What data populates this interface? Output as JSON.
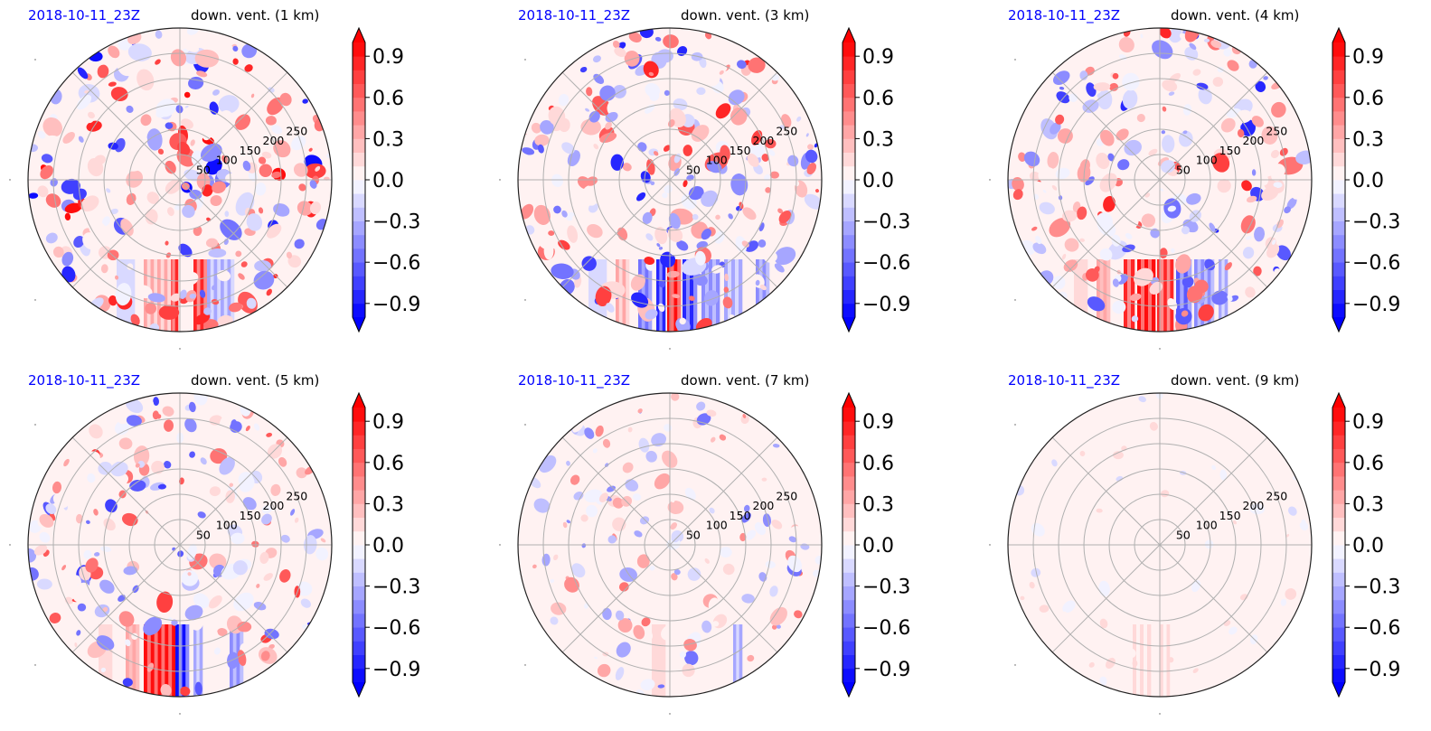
{
  "chart_data": {
    "type": "heatmap",
    "projection": "polar",
    "colormap": "bwr",
    "color_range": [
      -1.0,
      1.0
    ],
    "colorbar": {
      "ticks": [
        0.9,
        0.6,
        0.3,
        0.0,
        -0.3,
        -0.6,
        -0.9
      ],
      "tick_labels": [
        "0.9",
        "0.6",
        "0.3",
        "0.0",
        "−0.3",
        "−0.6",
        "−0.9"
      ],
      "extend": "both",
      "levels": 20
    },
    "radial_ticks": [
      50,
      100,
      150,
      200,
      250
    ],
    "radial_tick_labels": [
      "50",
      "100",
      "150",
      "200",
      "250"
    ],
    "r_max": 300,
    "angular_gridlines_deg": [
      0,
      45,
      90,
      135,
      180,
      225,
      270,
      315
    ],
    "grid": true,
    "date_color": "#0000ff",
    "panels": [
      {
        "date": "2018-10-11_23Z",
        "title": "down. vent. (1 km)",
        "activity": 1.0,
        "streaks": [
          [
            -12,
            -2,
            0.8
          ],
          [
            15,
            30,
            0.9
          ],
          [
            -40,
            -10,
            0.3
          ],
          [
            30,
            60,
            -0.3
          ],
          [
            -70,
            -50,
            -0.2
          ]
        ]
      },
      {
        "date": "2018-10-11_23Z",
        "title": "down. vent. (3 km)",
        "activity": 0.9,
        "streaks": [
          [
            -35,
            -20,
            -0.6
          ],
          [
            -15,
            -5,
            -0.8
          ],
          [
            -3,
            12,
            1.0
          ],
          [
            14,
            30,
            -0.8
          ],
          [
            35,
            55,
            -0.5
          ],
          [
            -60,
            -45,
            0.3
          ],
          [
            60,
            80,
            -0.3
          ],
          [
            -90,
            -70,
            -0.2
          ],
          [
            95,
            110,
            -0.4
          ]
        ]
      },
      {
        "date": "2018-10-11_23Z",
        "title": "down. vent. (4 km)",
        "activity": 0.85,
        "streaks": [
          [
            -40,
            -28,
            0.9
          ],
          [
            -25,
            -5,
            1.0
          ],
          [
            -3,
            15,
            0.9
          ],
          [
            18,
            35,
            -0.7
          ],
          [
            38,
            60,
            -0.5
          ],
          [
            -70,
            -55,
            0.4
          ],
          [
            -95,
            -80,
            0.2
          ],
          [
            65,
            75,
            -0.3
          ]
        ]
      },
      {
        "date": "2018-10-11_23Z",
        "title": "down. vent. (5 km)",
        "activity": 0.75,
        "streaks": [
          [
            -40,
            -5,
            1.0
          ],
          [
            -5,
            10,
            -0.9
          ],
          [
            15,
            25,
            -0.3
          ],
          [
            -60,
            -45,
            0.4
          ],
          [
            55,
            70,
            -0.5
          ],
          [
            -90,
            -75,
            0.2
          ]
        ]
      },
      {
        "date": "2018-10-11_23Z",
        "title": "down. vent. (7 km)",
        "activity": 0.55,
        "streaks": [
          [
            70,
            80,
            -0.3
          ],
          [
            -20,
            -5,
            0.2
          ]
        ]
      },
      {
        "date": "2018-10-11_23Z",
        "title": "down. vent. (9 km)",
        "activity": 0.2,
        "streaks": [
          [
            -30,
            -10,
            0.1
          ],
          [
            0,
            15,
            0.1
          ]
        ]
      }
    ]
  }
}
